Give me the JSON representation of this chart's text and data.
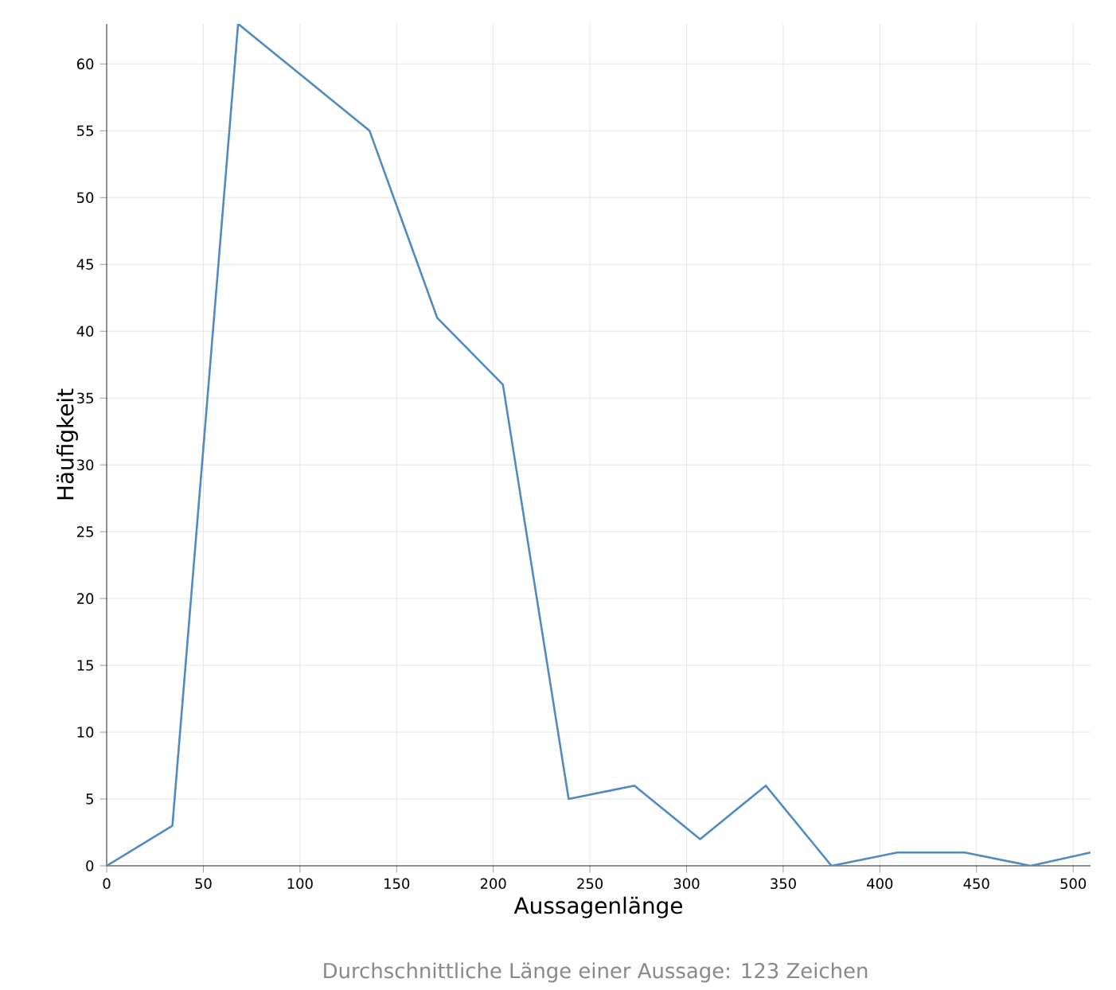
{
  "chart_data": {
    "type": "line",
    "xlabel": "Aussagenlänge",
    "ylabel": "Häufigkeit",
    "annotations": [
      "Durchschnittliche Länge einer Aussage: 123 Zeichen"
    ],
    "x": [
      0,
      34,
      68,
      136,
      171,
      205,
      239,
      273,
      307,
      341,
      375,
      409,
      444,
      478,
      509
    ],
    "series": [
      {
        "color": "#4f8bc2",
        "values": [
          0,
          3,
          63,
          55,
          41,
          36,
          5,
          6,
          2,
          6,
          0,
          1,
          1,
          0,
          1
        ]
      }
    ],
    "xlim": [
      0,
      509
    ],
    "ylim": [
      0,
      63
    ],
    "xticks": [
      0,
      50,
      100,
      150,
      200,
      250,
      300,
      350,
      400,
      450,
      500
    ],
    "yticks": [
      0,
      5,
      10,
      15,
      20,
      25,
      30,
      35,
      40,
      45,
      50,
      55,
      60
    ],
    "grid": true,
    "marker": "none",
    "line_style": "solid"
  }
}
